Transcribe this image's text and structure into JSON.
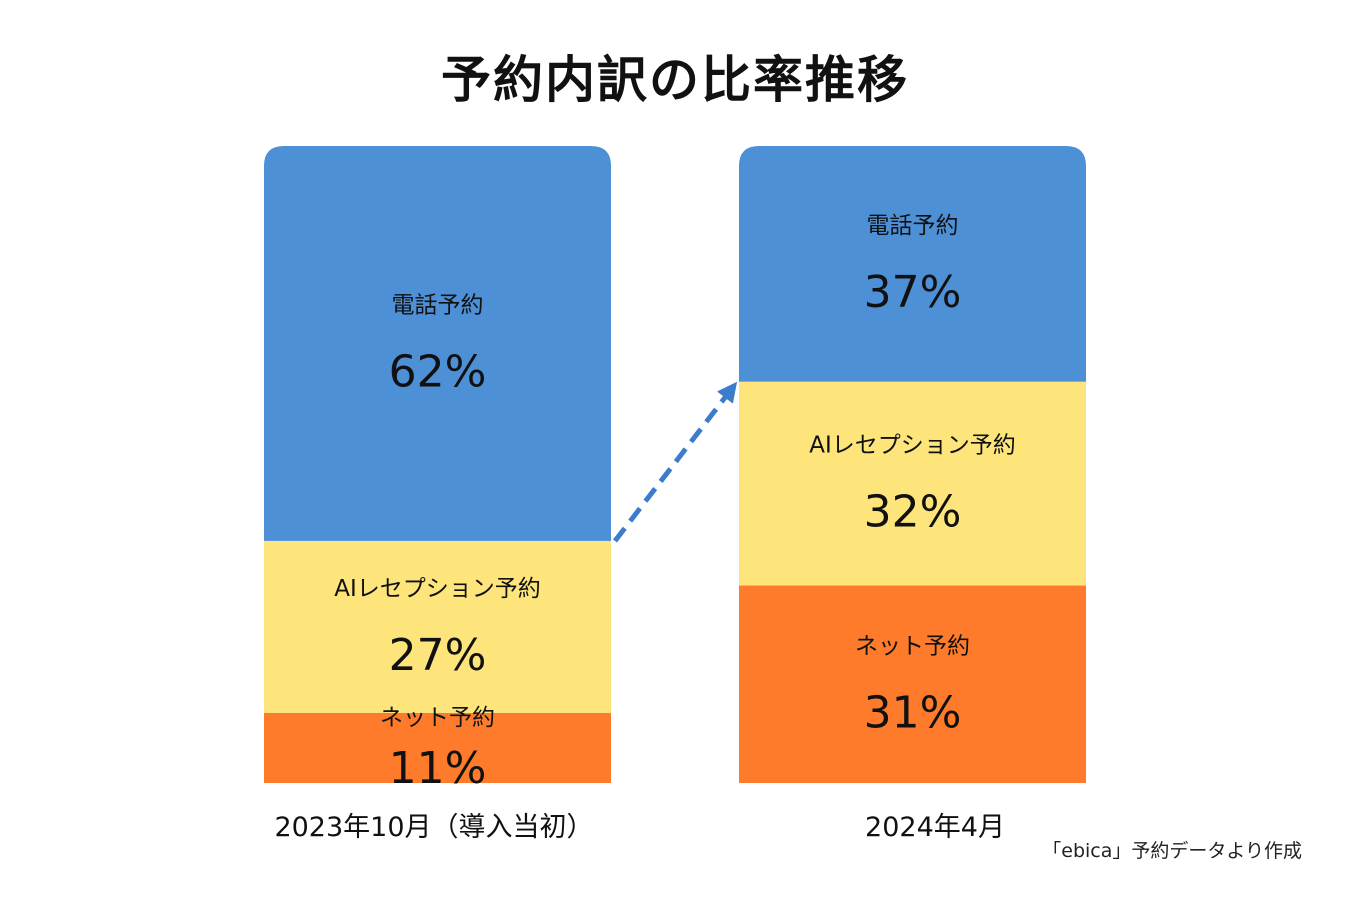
{
  "chart_data": {
    "type": "bar",
    "stacked": true,
    "normalized": true,
    "title": "予約内訳の比率推移",
    "categories": [
      "2023年10月（導入当初）",
      "2024年4月"
    ],
    "series": [
      {
        "name": "ネット予約",
        "values": [
          11,
          31
        ],
        "labels": [
          "11%",
          "31%"
        ],
        "color": "#fd7b2b"
      },
      {
        "name": "AIレセプション予約",
        "values": [
          27,
          32
        ],
        "labels": [
          "27%",
          "32%"
        ],
        "color": "#fde47b"
      },
      {
        "name": "電話予約",
        "values": [
          62,
          37
        ],
        "labels": [
          "62%",
          "37%"
        ],
        "color": "#4d90d6"
      }
    ],
    "ylim": [
      0,
      100
    ],
    "grid": false,
    "arrow_color": "#3c7ccc"
  },
  "source_note": "「ebica」予約データより作成"
}
